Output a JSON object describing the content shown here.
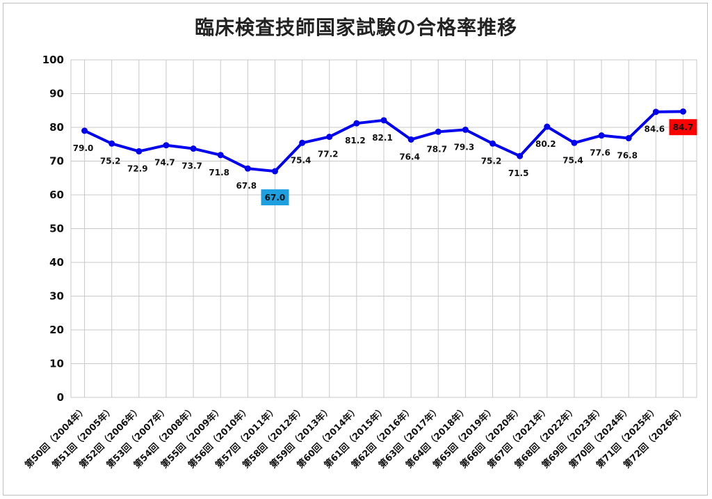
{
  "chart_data": {
    "type": "line",
    "title": "臨床検査技師国家試験の合格率推移",
    "categories": [
      "第50回（2004年）",
      "第51回（2005年）",
      "第52回（2006年）",
      "第53回（2007年）",
      "第54回（2008年）",
      "第55回（2009年）",
      "第56回（2010年）",
      "第57回（2011年）",
      "第58回（2012年）",
      "第59回（2013年）",
      "第60回（2014年）",
      "第61回（2015年）",
      "第62回（2016年）",
      "第63回（2017年）",
      "第64回（2018年）",
      "第65回（2019年）",
      "第66回（2020年）",
      "第67回（2021年）",
      "第68回（2022年）",
      "第69回（2023年）",
      "第70回（2024年）",
      "第71回（2025年）",
      "第72回（2026年）"
    ],
    "values": [
      79.0,
      75.2,
      72.9,
      74.7,
      73.7,
      71.8,
      67.8,
      67.0,
      75.4,
      77.2,
      81.2,
      82.1,
      76.4,
      78.7,
      79.3,
      75.2,
      71.5,
      80.2,
      75.4,
      77.6,
      76.8,
      84.6,
      84.7
    ],
    "data_labels": [
      "79.0",
      "75.2",
      "72.9",
      "74.7",
      "73.7",
      "71.8",
      "67.8",
      "67.0",
      "75.4",
      "77.2",
      "81.2",
      "82.1",
      "76.4",
      "78.7",
      "79.3",
      "75.2",
      "71.5",
      "80.2",
      "75.4",
      "77.6",
      "76.8",
      "84.6",
      "84.7"
    ],
    "ylim": [
      0,
      100
    ],
    "yticks": [
      "0",
      "10",
      "20",
      "30",
      "40",
      "50",
      "60",
      "70",
      "80",
      "90",
      "100"
    ],
    "grid": true,
    "line_color": "#0000ee",
    "highlights": [
      {
        "index": 7,
        "color": "#1ea0e0",
        "meaning": "minimum"
      },
      {
        "index": 22,
        "color": "#ff0000",
        "meaning": "maximum"
      }
    ]
  }
}
